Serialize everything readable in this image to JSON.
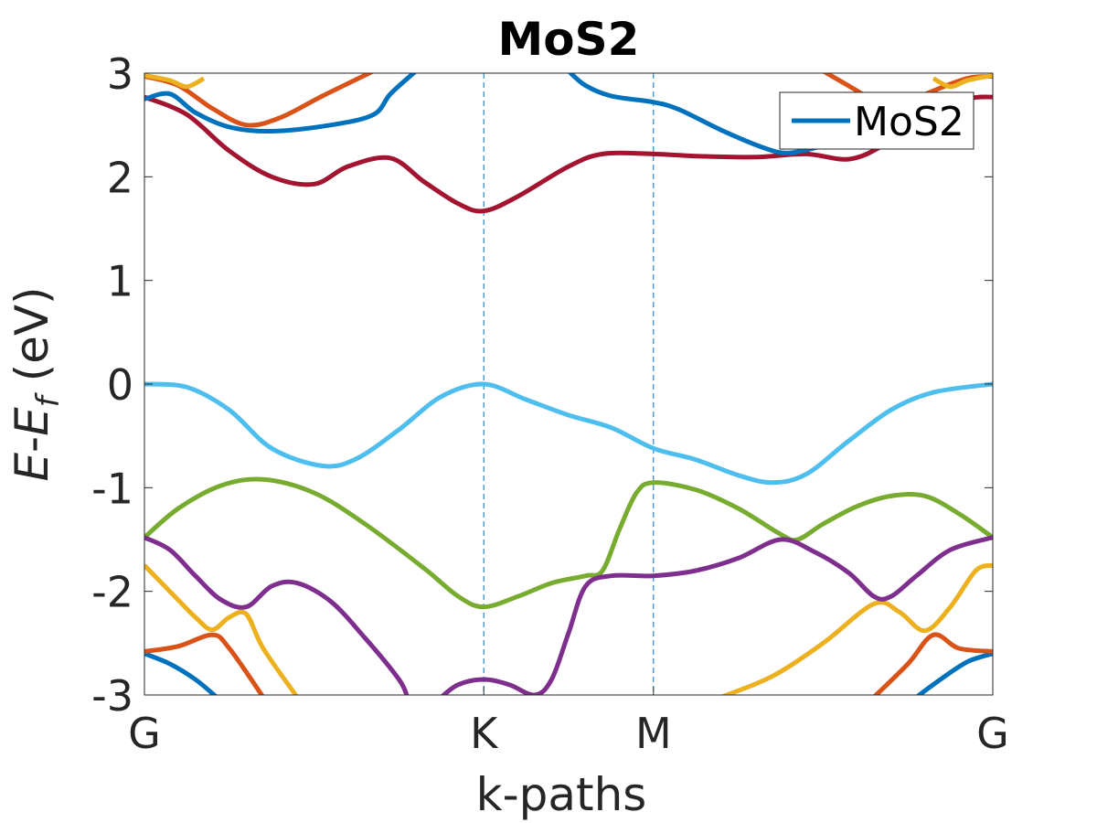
{
  "chart_data": {
    "type": "line",
    "title": "MoS2",
    "xlabel": "k-paths",
    "ylabel": {
      "main": "E",
      "dash": "-",
      "sym": "E",
      "sub": "f",
      "unit": " (eV)"
    },
    "ylim": [
      -3,
      3
    ],
    "xlim": [
      0,
      1
    ],
    "yticks": [
      -3,
      -2,
      -1,
      0,
      1,
      2,
      3
    ],
    "xticks": [
      {
        "label": "G",
        "x": 0
      },
      {
        "label": "K",
        "x": 0.4
      },
      {
        "label": "M",
        "x": 0.6
      },
      {
        "label": "G",
        "x": 1.0
      }
    ],
    "vlines": [
      0.4,
      0.6
    ],
    "grid": false,
    "legend": {
      "position": "top-right",
      "entries": [
        {
          "name": "MoS2",
          "color": "#0072BD"
        }
      ]
    },
    "series": [
      {
        "color": "#4DBEEE",
        "points": [
          [
            0,
            0
          ],
          [
            0.05,
            -0.03
          ],
          [
            0.1,
            -0.25
          ],
          [
            0.15,
            -0.62
          ],
          [
            0.21,
            -0.79
          ],
          [
            0.25,
            -0.72
          ],
          [
            0.3,
            -0.44
          ],
          [
            0.35,
            -0.12
          ],
          [
            0.4,
            0
          ],
          [
            0.45,
            -0.15
          ],
          [
            0.5,
            -0.3
          ],
          [
            0.55,
            -0.42
          ],
          [
            0.6,
            -0.62
          ],
          [
            0.65,
            -0.73
          ],
          [
            0.7,
            -0.88
          ],
          [
            0.74,
            -0.95
          ],
          [
            0.78,
            -0.87
          ],
          [
            0.83,
            -0.55
          ],
          [
            0.88,
            -0.25
          ],
          [
            0.93,
            -0.08
          ],
          [
            1,
            0
          ]
        ]
      },
      {
        "color": "#A2142F",
        "points": [
          [
            0,
            2.77
          ],
          [
            0.05,
            2.6
          ],
          [
            0.1,
            2.25
          ],
          [
            0.15,
            2.0
          ],
          [
            0.2,
            1.93
          ],
          [
            0.24,
            2.1
          ],
          [
            0.29,
            2.18
          ],
          [
            0.33,
            1.95
          ],
          [
            0.37,
            1.74
          ],
          [
            0.4,
            1.67
          ],
          [
            0.44,
            1.81
          ],
          [
            0.5,
            2.1
          ],
          [
            0.54,
            2.22
          ],
          [
            0.6,
            2.22
          ],
          [
            0.65,
            2.2
          ],
          [
            0.72,
            2.19
          ],
          [
            0.78,
            2.22
          ],
          [
            0.83,
            2.17
          ],
          [
            0.87,
            2.3
          ],
          [
            0.92,
            2.58
          ],
          [
            0.97,
            2.75
          ],
          [
            1,
            2.77
          ]
        ]
      },
      {
        "color": "#0072BD",
        "points": [
          [
            0,
            2.75
          ],
          [
            0.03,
            2.8
          ],
          [
            0.06,
            2.62
          ],
          [
            0.1,
            2.48
          ],
          [
            0.15,
            2.44
          ],
          [
            0.22,
            2.5
          ],
          [
            0.27,
            2.6
          ],
          [
            0.29,
            2.8
          ],
          [
            0.32,
            3.02
          ]
        ]
      },
      {
        "color": "#0072BD",
        "points": [
          [
            0.5,
            3.02
          ],
          [
            0.52,
            2.88
          ],
          [
            0.55,
            2.78
          ],
          [
            0.6,
            2.72
          ],
          [
            0.63,
            2.65
          ],
          [
            0.68,
            2.45
          ],
          [
            0.73,
            2.28
          ],
          [
            0.76,
            2.23
          ],
          [
            0.8,
            2.3
          ]
        ]
      },
      {
        "color": "#0072BD",
        "points": [
          [
            0,
            -2.6
          ],
          [
            0.03,
            -2.7
          ],
          [
            0.06,
            -2.85
          ],
          [
            0.085,
            -3.02
          ]
        ]
      },
      {
        "color": "#0072BD",
        "points": [
          [
            0.91,
            -3.02
          ],
          [
            0.94,
            -2.84
          ],
          [
            0.97,
            -2.68
          ],
          [
            1,
            -2.6
          ]
        ]
      },
      {
        "color": "#D95319",
        "points": [
          [
            0,
            2.97
          ],
          [
            0.04,
            2.88
          ],
          [
            0.08,
            2.66
          ],
          [
            0.12,
            2.5
          ],
          [
            0.16,
            2.57
          ],
          [
            0.21,
            2.78
          ],
          [
            0.27,
            3.02
          ]
        ]
      },
      {
        "color": "#D95319",
        "points": [
          [
            0.8,
            3.02
          ],
          [
            0.84,
            2.83
          ],
          [
            0.86,
            2.72
          ]
        ]
      },
      {
        "color": "#D95319",
        "points": [
          [
            0.9,
            2.72
          ],
          [
            0.93,
            2.83
          ],
          [
            0.97,
            2.95
          ],
          [
            1,
            2.97
          ]
        ]
      },
      {
        "color": "#D95319",
        "points": [
          [
            0,
            -2.58
          ],
          [
            0.04,
            -2.53
          ],
          [
            0.08,
            -2.42
          ],
          [
            0.1,
            -2.55
          ],
          [
            0.14,
            -3.02
          ]
        ]
      },
      {
        "color": "#D95319",
        "points": [
          [
            0.86,
            -3.02
          ],
          [
            0.9,
            -2.7
          ],
          [
            0.93,
            -2.42
          ],
          [
            0.96,
            -2.55
          ],
          [
            1,
            -2.58
          ]
        ]
      },
      {
        "color": "#EDB120",
        "points": [
          [
            0,
            2.98
          ],
          [
            0.03,
            2.93
          ],
          [
            0.05,
            2.87
          ],
          [
            0.07,
            2.95
          ]
        ]
      },
      {
        "color": "#EDB120",
        "points": [
          [
            0.93,
            2.95
          ],
          [
            0.95,
            2.87
          ],
          [
            0.97,
            2.93
          ],
          [
            1,
            2.98
          ]
        ]
      },
      {
        "color": "#EDB120",
        "points": [
          [
            0,
            -1.75
          ],
          [
            0.03,
            -2.0
          ],
          [
            0.06,
            -2.25
          ],
          [
            0.08,
            -2.37
          ],
          [
            0.1,
            -2.25
          ],
          [
            0.12,
            -2.22
          ],
          [
            0.14,
            -2.55
          ],
          [
            0.18,
            -3.02
          ]
        ]
      },
      {
        "color": "#EDB120",
        "points": [
          [
            0.68,
            -3.02
          ],
          [
            0.74,
            -2.82
          ],
          [
            0.8,
            -2.5
          ],
          [
            0.86,
            -2.12
          ],
          [
            0.89,
            -2.2
          ],
          [
            0.92,
            -2.38
          ],
          [
            0.95,
            -2.15
          ],
          [
            0.98,
            -1.8
          ],
          [
            1,
            -1.75
          ]
        ]
      },
      {
        "color": "#77AC30",
        "points": [
          [
            0,
            -1.48
          ],
          [
            0.04,
            -1.2
          ],
          [
            0.09,
            -0.98
          ],
          [
            0.14,
            -0.92
          ],
          [
            0.2,
            -1.05
          ],
          [
            0.26,
            -1.35
          ],
          [
            0.33,
            -1.78
          ],
          [
            0.37,
            -2.05
          ],
          [
            0.4,
            -2.15
          ],
          [
            0.44,
            -2.05
          ],
          [
            0.48,
            -1.92
          ],
          [
            0.52,
            -1.85
          ],
          [
            0.54,
            -1.8
          ],
          [
            0.56,
            -1.4
          ],
          [
            0.58,
            -1.05
          ],
          [
            0.6,
            -0.95
          ],
          [
            0.65,
            -1.02
          ],
          [
            0.7,
            -1.2
          ],
          [
            0.75,
            -1.45
          ],
          [
            0.77,
            -1.5
          ],
          [
            0.8,
            -1.35
          ],
          [
            0.84,
            -1.18
          ],
          [
            0.88,
            -1.08
          ],
          [
            0.92,
            -1.08
          ],
          [
            0.96,
            -1.25
          ],
          [
            1,
            -1.48
          ]
        ]
      },
      {
        "color": "#7E2F8E",
        "points": [
          [
            0,
            -1.48
          ],
          [
            0.03,
            -1.6
          ],
          [
            0.06,
            -1.85
          ],
          [
            0.09,
            -2.08
          ],
          [
            0.12,
            -2.15
          ],
          [
            0.15,
            -1.95
          ],
          [
            0.18,
            -1.92
          ],
          [
            0.22,
            -2.1
          ],
          [
            0.26,
            -2.45
          ],
          [
            0.3,
            -2.85
          ],
          [
            0.31,
            -3.02
          ]
        ]
      },
      {
        "color": "#7E2F8E",
        "points": [
          [
            0.35,
            -3.02
          ],
          [
            0.37,
            -2.9
          ],
          [
            0.4,
            -2.85
          ],
          [
            0.43,
            -2.9
          ],
          [
            0.46,
            -3.0
          ],
          [
            0.48,
            -2.85
          ],
          [
            0.5,
            -2.4
          ],
          [
            0.52,
            -1.95
          ],
          [
            0.55,
            -1.85
          ],
          [
            0.6,
            -1.85
          ],
          [
            0.65,
            -1.8
          ],
          [
            0.7,
            -1.68
          ],
          [
            0.75,
            -1.5
          ],
          [
            0.79,
            -1.62
          ],
          [
            0.83,
            -1.82
          ],
          [
            0.86,
            -2.05
          ],
          [
            0.88,
            -2.05
          ],
          [
            0.91,
            -1.85
          ],
          [
            0.95,
            -1.6
          ],
          [
            1,
            -1.48
          ]
        ]
      }
    ]
  }
}
